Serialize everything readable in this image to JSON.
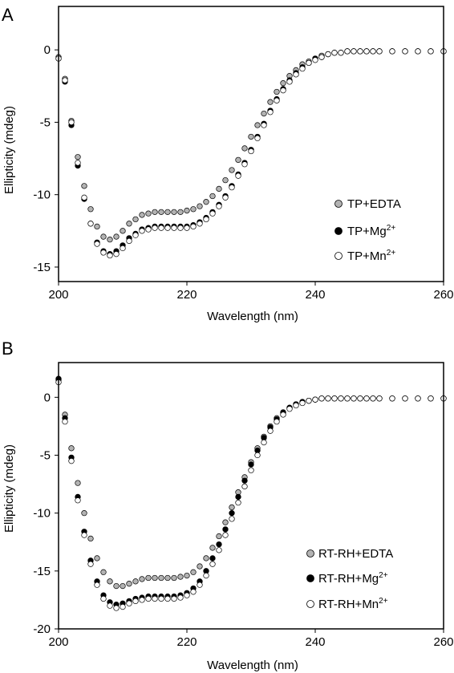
{
  "chart_data": [
    {
      "type": "scatter",
      "panel_label": "A",
      "xlabel": "Wavelength (nm)",
      "ylabel": "Ellipticity (mdeg)",
      "xlim": [
        200,
        260
      ],
      "ylim": [
        -16,
        3
      ],
      "xticks": [
        200,
        220,
        240,
        260
      ],
      "yticks": [
        0,
        -5,
        -10,
        -15
      ],
      "grid": false,
      "legend_position": "right-middle",
      "series": [
        {
          "name": "TP+EDTA",
          "legend_base": "TP+EDTA",
          "legend_sup": "",
          "color": "#b3b3b3",
          "x": [
            200,
            201,
            202,
            203,
            204,
            205,
            206,
            207,
            208,
            209,
            210,
            211,
            212,
            213,
            214,
            215,
            216,
            217,
            218,
            219,
            220,
            221,
            222,
            223,
            224,
            225,
            226,
            227,
            228,
            229,
            230,
            231,
            232,
            233,
            234,
            235,
            236,
            237,
            238,
            239,
            240,
            241,
            242,
            243,
            244,
            245,
            246,
            247,
            248,
            249,
            250,
            252,
            254,
            256,
            258,
            260
          ],
          "y": [
            -0.5,
            -2.0,
            -4.9,
            -7.4,
            -9.4,
            -11.0,
            -12.2,
            -12.9,
            -13.1,
            -12.9,
            -12.5,
            -12.0,
            -11.7,
            -11.4,
            -11.3,
            -11.2,
            -11.2,
            -11.2,
            -11.2,
            -11.2,
            -11.1,
            -11.0,
            -10.8,
            -10.5,
            -10.1,
            -9.6,
            -9.0,
            -8.3,
            -7.6,
            -6.8,
            -6.0,
            -5.2,
            -4.4,
            -3.6,
            -2.9,
            -2.3,
            -1.8,
            -1.4,
            -1.0,
            -0.8,
            -0.6,
            -0.4,
            -0.3,
            -0.2,
            -0.2,
            -0.1,
            -0.1,
            -0.1,
            -0.1,
            -0.1,
            -0.1,
            -0.1,
            -0.1,
            -0.1,
            -0.1,
            -0.1
          ]
        },
        {
          "name": "TP+Mg2+",
          "legend_base": "TP+Mg",
          "legend_sup": "2+",
          "color": "#000000",
          "x": [
            200,
            201,
            202,
            203,
            204,
            205,
            206,
            207,
            208,
            209,
            210,
            211,
            212,
            213,
            214,
            215,
            216,
            217,
            218,
            219,
            220,
            221,
            222,
            223,
            224,
            225,
            226,
            227,
            228,
            229,
            230,
            231,
            232,
            233,
            234,
            235,
            236,
            237,
            238,
            239,
            240,
            241,
            242,
            243,
            244,
            245,
            246,
            247,
            248,
            249,
            250,
            252,
            254,
            256,
            258,
            260
          ],
          "y": [
            -0.6,
            -2.2,
            -5.2,
            -8.0,
            -10.3,
            -12.0,
            -13.3,
            -13.9,
            -14.1,
            -13.9,
            -13.5,
            -13.0,
            -12.7,
            -12.4,
            -12.3,
            -12.2,
            -12.2,
            -12.2,
            -12.2,
            -12.2,
            -12.2,
            -12.1,
            -11.9,
            -11.6,
            -11.2,
            -10.7,
            -10.1,
            -9.4,
            -8.6,
            -7.8,
            -6.9,
            -6.0,
            -5.1,
            -4.2,
            -3.4,
            -2.7,
            -2.1,
            -1.6,
            -1.2,
            -0.9,
            -0.6,
            -0.5,
            -0.3,
            -0.2,
            -0.2,
            -0.1,
            -0.1,
            -0.1,
            -0.1,
            -0.1,
            -0.1,
            -0.1,
            -0.1,
            -0.1,
            -0.1,
            -0.1
          ]
        },
        {
          "name": "TP+Mn2+",
          "legend_base": "TP+Mn",
          "legend_sup": "2+",
          "color": "#ffffff",
          "x": [
            200,
            201,
            202,
            203,
            204,
            205,
            206,
            207,
            208,
            209,
            210,
            211,
            212,
            213,
            214,
            215,
            216,
            217,
            218,
            219,
            220,
            221,
            222,
            223,
            224,
            225,
            226,
            227,
            228,
            229,
            230,
            231,
            232,
            233,
            234,
            235,
            236,
            237,
            238,
            239,
            240,
            241,
            242,
            243,
            244,
            245,
            246,
            247,
            248,
            249,
            250,
            252,
            254,
            256,
            258,
            260
          ],
          "y": [
            -0.6,
            -2.1,
            -5.0,
            -7.8,
            -10.2,
            -12.0,
            -13.4,
            -14.0,
            -14.2,
            -14.1,
            -13.7,
            -13.2,
            -12.8,
            -12.5,
            -12.4,
            -12.3,
            -12.3,
            -12.3,
            -12.3,
            -12.3,
            -12.3,
            -12.2,
            -12.0,
            -11.7,
            -11.3,
            -10.8,
            -10.2,
            -9.5,
            -8.7,
            -7.9,
            -7.0,
            -6.1,
            -5.2,
            -4.3,
            -3.5,
            -2.8,
            -2.2,
            -1.7,
            -1.3,
            -0.9,
            -0.7,
            -0.5,
            -0.3,
            -0.2,
            -0.2,
            -0.1,
            -0.1,
            -0.1,
            -0.1,
            -0.1,
            -0.1,
            -0.1,
            -0.1,
            -0.1,
            -0.1,
            -0.1
          ]
        }
      ]
    },
    {
      "type": "scatter",
      "panel_label": "B",
      "xlabel": "Wavelength (nm)",
      "ylabel": "Ellipticity (mdeg)",
      "xlim": [
        200,
        260
      ],
      "ylim": [
        -20,
        3
      ],
      "xticks": [
        200,
        220,
        240,
        260
      ],
      "yticks": [
        0,
        -5,
        -10,
        -15,
        -20
      ],
      "grid": false,
      "legend_position": "bottom-right",
      "series": [
        {
          "name": "RT-RH+EDTA",
          "legend_base": "RT-RH+EDTA",
          "legend_sup": "",
          "color": "#b3b3b3",
          "x": [
            200,
            201,
            202,
            203,
            204,
            205,
            206,
            207,
            208,
            209,
            210,
            211,
            212,
            213,
            214,
            215,
            216,
            217,
            218,
            219,
            220,
            221,
            222,
            223,
            224,
            225,
            226,
            227,
            228,
            229,
            230,
            231,
            232,
            233,
            234,
            235,
            236,
            237,
            238,
            239,
            240,
            241,
            242,
            243,
            244,
            245,
            246,
            247,
            248,
            249,
            250,
            252,
            254,
            256,
            258,
            260
          ],
          "y": [
            1.5,
            -1.5,
            -4.4,
            -7.4,
            -10.0,
            -12.2,
            -13.9,
            -15.1,
            -15.9,
            -16.3,
            -16.3,
            -16.1,
            -15.9,
            -15.7,
            -15.6,
            -15.6,
            -15.6,
            -15.6,
            -15.6,
            -15.5,
            -15.4,
            -15.1,
            -14.6,
            -13.9,
            -13.0,
            -12.0,
            -10.8,
            -9.5,
            -8.2,
            -6.9,
            -5.6,
            -4.4,
            -3.4,
            -2.5,
            -1.8,
            -1.3,
            -0.9,
            -0.6,
            -0.4,
            -0.3,
            -0.2,
            -0.1,
            -0.1,
            -0.1,
            -0.1,
            -0.1,
            -0.1,
            -0.1,
            -0.1,
            -0.1,
            -0.1,
            -0.1,
            -0.1,
            -0.1,
            -0.1,
            -0.1
          ]
        },
        {
          "name": "RT-RH+Mg2+",
          "legend_base": "RT-RH+Mg",
          "legend_sup": "2+",
          "color": "#000000",
          "x": [
            200,
            201,
            202,
            203,
            204,
            205,
            206,
            207,
            208,
            209,
            210,
            211,
            212,
            213,
            214,
            215,
            216,
            217,
            218,
            219,
            220,
            221,
            222,
            223,
            224,
            225,
            226,
            227,
            228,
            229,
            230,
            231,
            232,
            233,
            234,
            235,
            236,
            237,
            238,
            239,
            240,
            241,
            242,
            243,
            244,
            245,
            246,
            247,
            248,
            249,
            250,
            252,
            254,
            256,
            258,
            260
          ],
          "y": [
            1.6,
            -1.8,
            -5.2,
            -8.6,
            -11.6,
            -14.1,
            -15.9,
            -17.1,
            -17.7,
            -17.9,
            -17.8,
            -17.6,
            -17.4,
            -17.3,
            -17.2,
            -17.2,
            -17.2,
            -17.2,
            -17.2,
            -17.1,
            -16.9,
            -16.5,
            -15.9,
            -15.0,
            -13.9,
            -12.7,
            -11.4,
            -10.0,
            -8.6,
            -7.2,
            -5.8,
            -4.6,
            -3.5,
            -2.6,
            -1.9,
            -1.3,
            -0.9,
            -0.6,
            -0.4,
            -0.3,
            -0.2,
            -0.1,
            -0.1,
            -0.1,
            -0.1,
            -0.1,
            -0.1,
            -0.1,
            -0.1,
            -0.1,
            -0.1,
            -0.1,
            -0.1,
            -0.1,
            -0.1,
            -0.1
          ]
        },
        {
          "name": "RT-RH+Mn2+",
          "legend_base": "RT-RH+Mn",
          "legend_sup": "2+",
          "color": "#ffffff",
          "x": [
            200,
            201,
            202,
            203,
            204,
            205,
            206,
            207,
            208,
            209,
            210,
            211,
            212,
            213,
            214,
            215,
            216,
            217,
            218,
            219,
            220,
            221,
            222,
            223,
            224,
            225,
            226,
            227,
            228,
            229,
            230,
            231,
            232,
            233,
            234,
            235,
            236,
            237,
            238,
            239,
            240,
            241,
            242,
            243,
            244,
            245,
            246,
            247,
            248,
            249,
            250,
            252,
            254,
            256,
            258,
            260
          ],
          "y": [
            1.3,
            -2.1,
            -5.5,
            -8.9,
            -11.9,
            -14.4,
            -16.2,
            -17.4,
            -18.0,
            -18.2,
            -18.1,
            -17.8,
            -17.6,
            -17.5,
            -17.4,
            -17.4,
            -17.4,
            -17.4,
            -17.4,
            -17.3,
            -17.1,
            -16.8,
            -16.2,
            -15.4,
            -14.4,
            -13.2,
            -11.9,
            -10.5,
            -9.1,
            -7.7,
            -6.3,
            -5.0,
            -3.9,
            -2.9,
            -2.1,
            -1.5,
            -1.0,
            -0.7,
            -0.5,
            -0.3,
            -0.2,
            -0.1,
            -0.1,
            -0.1,
            -0.1,
            -0.1,
            -0.1,
            -0.1,
            -0.1,
            -0.1,
            -0.1,
            -0.1,
            -0.1,
            -0.1,
            -0.1,
            -0.1
          ]
        }
      ]
    }
  ]
}
